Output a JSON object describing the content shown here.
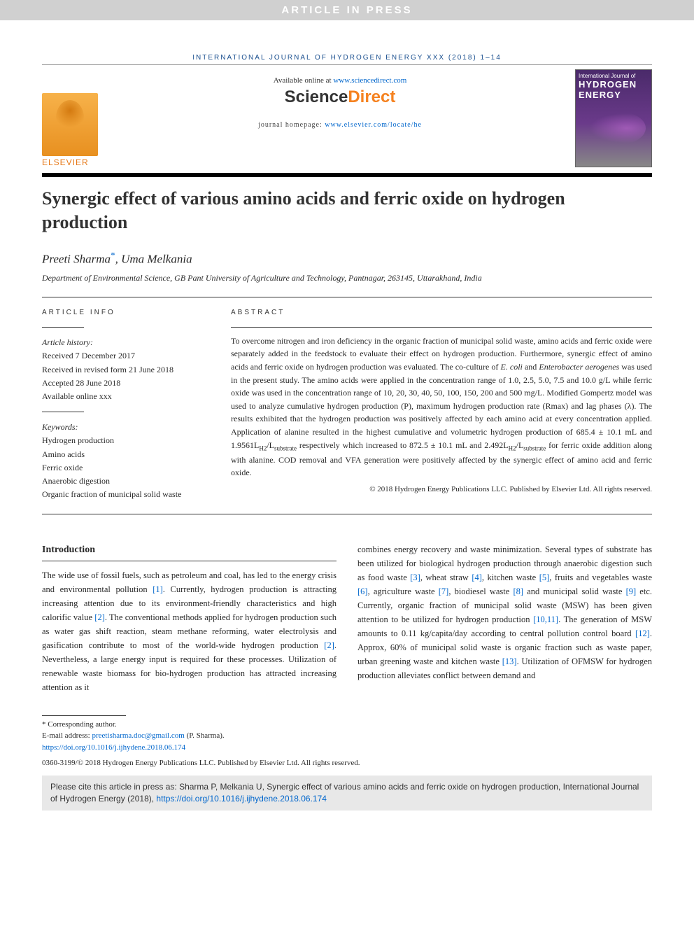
{
  "banner": {
    "text": "ARTICLE IN PRESS"
  },
  "journal_header": "INTERNATIONAL JOURNAL OF HYDROGEN ENERGY XXX (2018) 1–14",
  "header": {
    "available_prefix": "Available online at ",
    "available_link": "www.sciencedirect.com",
    "sd_part1": "Science",
    "sd_part2": "Direct",
    "homepage_prefix": "journal homepage: ",
    "homepage_link": "www.elsevier.com/locate/he",
    "publisher_name": "ELSEVIER",
    "cover_line1": "International Journal of",
    "cover_line2": "HYDROGEN",
    "cover_line3": "ENERGY"
  },
  "title": "Synergic effect of various amino acids and ferric oxide on hydrogen production",
  "authors_html": "Preeti Sharma*, Uma Melkania",
  "author1": "Preeti Sharma",
  "corr_mark": "*",
  "author_sep": ", ",
  "author2": "Uma Melkania",
  "affiliation": "Department of Environmental Science, GB Pant University of Agriculture and Technology, Pantnagar, 263145, Uttarakhand, India",
  "info": {
    "head": "ARTICLE INFO",
    "history_label": "Article history:",
    "received": "Received 7 December 2017",
    "revised": "Received in revised form 21 June 2018",
    "accepted": "Accepted 28 June 2018",
    "online": "Available online xxx",
    "keywords_label": "Keywords:",
    "keywords": [
      "Hydrogen production",
      "Amino acids",
      "Ferric oxide",
      "Anaerobic digestion",
      "Organic fraction of municipal solid waste"
    ]
  },
  "abstract": {
    "head": "ABSTRACT",
    "text": "To overcome nitrogen and iron deficiency in the organic fraction of municipal solid waste, amino acids and ferric oxide were separately added in the feedstock to evaluate their effect on hydrogen production. Furthermore, synergic effect of amino acids and ferric oxide on hydrogen production was evaluated. The co-culture of E. coli and Enterobacter aerogenes was used in the present study. The amino acids were applied in the concentration range of 1.0, 2.5, 5.0, 7.5 and 10.0 g/L while ferric oxide was used in the concentration range of 10, 20, 30, 40, 50, 100, 150, 200 and 500 mg/L. Modified Gompertz model was used to analyze cumulative hydrogen production (P), maximum hydrogen production rate (Rmax) and lag phases (λ). The results exhibited that the hydrogen production was positively affected by each amino acid at every concentration applied. Application of alanine resulted in the highest cumulative and volumetric hydrogen production of 685.4 ± 10.1 mL and 1.9561LH2/Lsubstrate respectively which increased to 872.5 ± 10.1 mL and 2.492LH2/Lsubstrate for ferric oxide addition along with alanine. COD removal and VFA generation were positively affected by the synergic effect of amino acid and ferric oxide.",
    "copyright": "© 2018 Hydrogen Energy Publications LLC. Published by Elsevier Ltd. All rights reserved."
  },
  "introduction": {
    "head": "Introduction",
    "col1": "The wide use of fossil fuels, such as petroleum and coal, has led to the energy crisis and environmental pollution [1]. Currently, hydrogen production is attracting increasing attention due to its environment-friendly characteristics and high calorific value [2]. The conventional methods applied for hydrogen production such as water gas shift reaction, steam methane reforming, water electrolysis and gasification contribute to most of the world-wide hydrogen production [2]. Nevertheless, a large energy input is required for these processes. Utilization of renewable waste biomass for bio-hydrogen production has attracted increasing attention as it",
    "col2": "combines energy recovery and waste minimization. Several types of substrate has been utilized for biological hydrogen production through anaerobic digestion such as food waste [3], wheat straw [4], kitchen waste [5], fruits and vegetables waste [6], agriculture waste [7], biodiesel waste [8] and municipal solid waste [9] etc. Currently, organic fraction of municipal solid waste (MSW) has been given attention to be utilized for hydrogen production [10,11]. The generation of MSW amounts to 0.11 kg/capita/day according to central pollution control board [12]. Approx, 60% of municipal solid waste is organic fraction such as waste paper, urban greening waste and kitchen waste [13]. Utilization of OFMSW for hydrogen production alleviates conflict between demand and"
  },
  "footnotes": {
    "corr_label": "* Corresponding author.",
    "email_label": "E-mail address: ",
    "email": "preetisharma.doc@gmail.com",
    "email_suffix": " (P. Sharma).",
    "doi": "https://doi.org/10.1016/j.ijhydene.2018.06.174",
    "issn": "0360-3199/© 2018 Hydrogen Energy Publications LLC. Published by Elsevier Ltd. All rights reserved."
  },
  "citebox": {
    "prefix": "Please cite this article in press as: Sharma P, Melkania U, Synergic effect of various amino acids and ferric oxide on hydrogen production, International Journal of Hydrogen Energy (2018), ",
    "link": "https://doi.org/10.1016/j.ijhydene.2018.06.174"
  },
  "colors": {
    "banner_bg": "#d0d0d0",
    "banner_fg": "#ffffff",
    "link": "#0066cc",
    "elsevier_orange": "#e67817",
    "sd_orange": "#f58220",
    "rule": "#000000",
    "cover_gradient_top": "#4a2a6a",
    "cover_gradient_mid": "#6a3a8a",
    "cite_bg": "#e8e8e8"
  }
}
